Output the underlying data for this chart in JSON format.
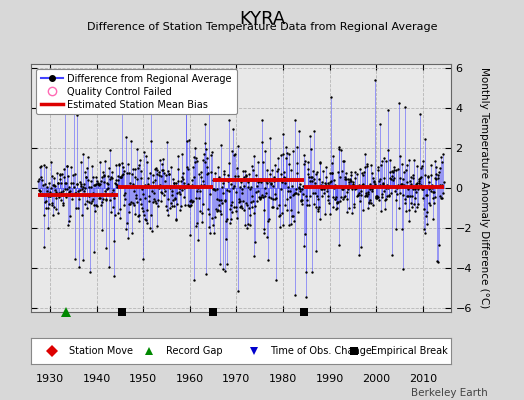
{
  "title": "KYRA",
  "subtitle": "Difference of Station Temperature Data from Regional Average",
  "ylabel": "Monthly Temperature Anomaly Difference (°C)",
  "xlabel_years": [
    1930,
    1940,
    1950,
    1960,
    1970,
    1980,
    1990,
    2000,
    2010
  ],
  "yticks": [
    -6,
    -4,
    -2,
    0,
    2,
    4,
    6
  ],
  "ylim": [
    -6.2,
    6.2
  ],
  "xlim": [
    1926,
    2016
  ],
  "bg_color": "#d8d8d8",
  "plot_bg_color": "#e8e8e8",
  "line_color": "#4444ff",
  "dot_color": "#000000",
  "bias_color": "#dd0000",
  "seed": 42,
  "n_points": 1020,
  "x_start": 1927.5,
  "x_end": 2014.5,
  "bias_segments": [
    {
      "x_start": 1927.5,
      "x_end": 1942.5,
      "bias": -0.35
    },
    {
      "x_start": 1942.5,
      "x_end": 1944.5,
      "bias": -0.35
    },
    {
      "x_start": 1944.5,
      "x_end": 1965.0,
      "bias": 0.05
    },
    {
      "x_start": 1965.0,
      "x_end": 1984.5,
      "bias": 0.42
    },
    {
      "x_start": 1984.5,
      "x_end": 2014.5,
      "bias": 0.05
    }
  ],
  "marker_positions": {
    "record_gap": [
      1933.5
    ],
    "empirical_break": [
      1945.5,
      1965.0,
      1984.5
    ]
  },
  "watermark": "Berkeley Earth",
  "legend_items": [
    "Difference from Regional Average",
    "Quality Control Failed",
    "Estimated Station Mean Bias"
  ],
  "bottom_legend": [
    {
      "marker": "D",
      "color": "#dd0000",
      "label": "Station Move"
    },
    {
      "marker": "^",
      "color": "#008800",
      "label": "Record Gap"
    },
    {
      "marker": "v",
      "color": "#0000cc",
      "label": "Time of Obs. Change"
    },
    {
      "marker": "s",
      "color": "#000000",
      "label": "Empirical Break"
    }
  ]
}
